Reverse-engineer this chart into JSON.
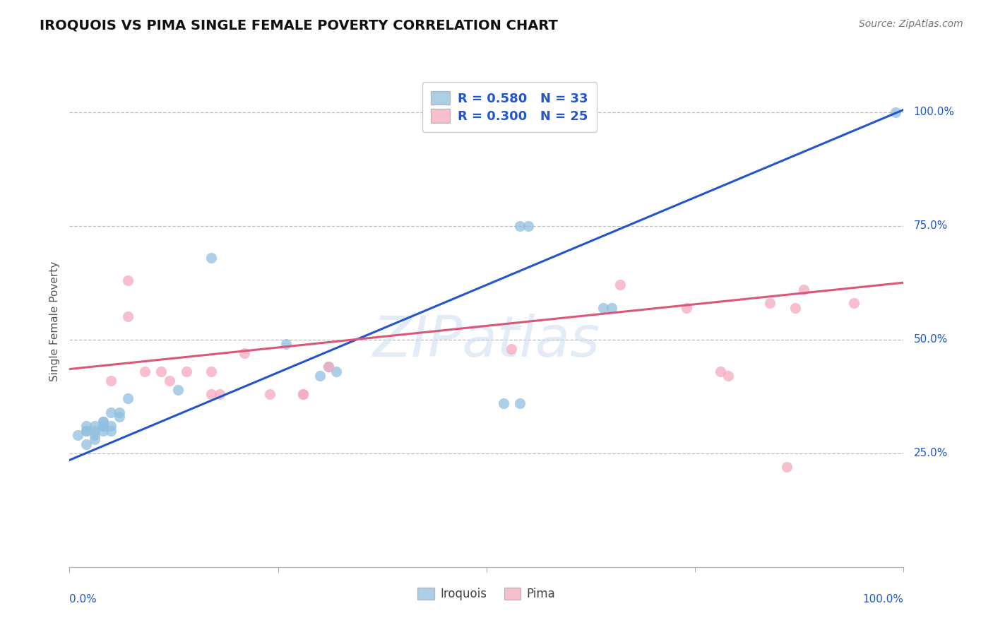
{
  "title": "IROQUOIS VS PIMA SINGLE FEMALE POVERTY CORRELATION CHART",
  "source": "Source: ZipAtlas.com",
  "ylabel": "Single Female Poverty",
  "ytick_labels": [
    "25.0%",
    "50.0%",
    "75.0%",
    "100.0%"
  ],
  "ytick_values": [
    0.25,
    0.5,
    0.75,
    1.0
  ],
  "grid_color": "#bbbbbb",
  "background_color": "#ffffff",
  "iroquois_color": "#90bfe0",
  "pima_color": "#f5aabe",
  "iroquois_line_color": "#2255cc",
  "pima_line_color": "#dd5577",
  "legend_text_color": "#2255cc",
  "iroquois_x": [
    0.01,
    0.02,
    0.02,
    0.02,
    0.02,
    0.03,
    0.03,
    0.03,
    0.03,
    0.04,
    0.04,
    0.04,
    0.04,
    0.04,
    0.05,
    0.05,
    0.05,
    0.06,
    0.06,
    0.07,
    0.13,
    0.17,
    0.26,
    0.3,
    0.31,
    0.32,
    0.52,
    0.54,
    0.54,
    0.55,
    0.64,
    0.65,
    0.99
  ],
  "iroquois_y": [
    0.29,
    0.3,
    0.3,
    0.31,
    0.27,
    0.3,
    0.31,
    0.29,
    0.28,
    0.31,
    0.32,
    0.3,
    0.32,
    0.31,
    0.34,
    0.31,
    0.3,
    0.34,
    0.33,
    0.37,
    0.39,
    0.68,
    0.49,
    0.42,
    0.44,
    0.43,
    0.36,
    0.36,
    0.75,
    0.75,
    0.57,
    0.57,
    1.0
  ],
  "pima_x": [
    0.05,
    0.07,
    0.07,
    0.09,
    0.11,
    0.12,
    0.14,
    0.17,
    0.17,
    0.18,
    0.21,
    0.24,
    0.28,
    0.28,
    0.31,
    0.53,
    0.66,
    0.74,
    0.78,
    0.79,
    0.84,
    0.86,
    0.87,
    0.88,
    0.94
  ],
  "pima_y": [
    0.41,
    0.55,
    0.63,
    0.43,
    0.43,
    0.41,
    0.43,
    0.43,
    0.38,
    0.38,
    0.47,
    0.38,
    0.38,
    0.38,
    0.44,
    0.48,
    0.62,
    0.57,
    0.43,
    0.42,
    0.58,
    0.22,
    0.57,
    0.61,
    0.58
  ],
  "iroquois_line_x0": 0.0,
  "iroquois_line_y0": 0.235,
  "iroquois_line_x1": 1.0,
  "iroquois_line_y1": 1.005,
  "pima_line_x0": 0.0,
  "pima_line_y0": 0.435,
  "pima_line_x1": 1.0,
  "pima_line_y1": 0.625,
  "watermark": "ZIPatlas",
  "marker_size": 120,
  "xlim": [
    0.0,
    1.0
  ],
  "ylim": [
    0.0,
    1.08
  ]
}
